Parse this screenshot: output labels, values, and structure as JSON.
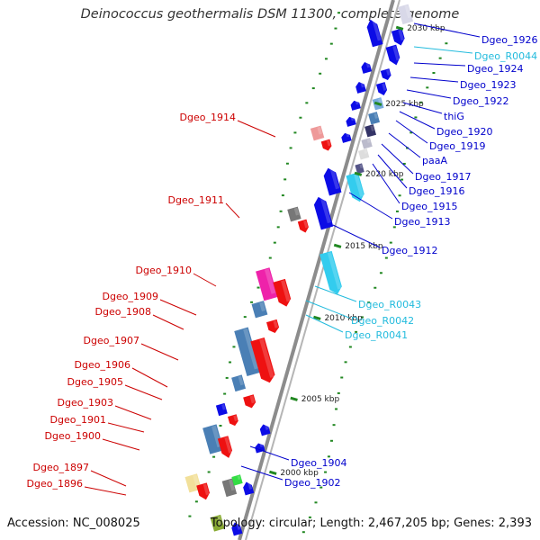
{
  "title": "Deinococcus geothermalis DSM 11300, complete genome",
  "footer": {
    "accession": "Accession: NC_008025",
    "topology": "Topology: circular; Length: 2,467,205 bp; Genes: 2,393"
  },
  "colors": {
    "backbone": "#9a9a9a",
    "forward_gene": "#0000ee",
    "reverse_gene": "#ee0000",
    "rna_label": "#22bbdd",
    "gc_dots": "#228822"
  },
  "ticks": [
    {
      "label": "2030 kbp"
    },
    {
      "label": "2025 kbp"
    },
    {
      "label": "2020 kbp"
    },
    {
      "label": "2015 kbp"
    },
    {
      "label": "2010 kbp"
    },
    {
      "label": "2005 kbp"
    },
    {
      "label": "2000 kbp"
    }
  ],
  "labels_left": [
    {
      "text": "Dgeo_1914",
      "color": "#cc0000"
    },
    {
      "text": "Dgeo_1911",
      "color": "#cc0000"
    },
    {
      "text": "Dgeo_1910",
      "color": "#cc0000"
    },
    {
      "text": "Dgeo_1909",
      "color": "#cc0000"
    },
    {
      "text": "Dgeo_1908",
      "color": "#cc0000"
    },
    {
      "text": "Dgeo_1907",
      "color": "#cc0000"
    },
    {
      "text": "Dgeo_1906",
      "color": "#cc0000"
    },
    {
      "text": "Dgeo_1905",
      "color": "#cc0000"
    },
    {
      "text": "Dgeo_1903",
      "color": "#cc0000"
    },
    {
      "text": "Dgeo_1901",
      "color": "#cc0000"
    },
    {
      "text": "Dgeo_1900",
      "color": "#cc0000"
    },
    {
      "text": "Dgeo_1897",
      "color": "#cc0000"
    },
    {
      "text": "Dgeo_1896",
      "color": "#cc0000"
    }
  ],
  "labels_right": [
    {
      "text": "Dgeo_1926",
      "color": "#0000cc"
    },
    {
      "text": "Dgeo_R0044",
      "color": "#22bbdd"
    },
    {
      "text": "Dgeo_1924",
      "color": "#0000cc"
    },
    {
      "text": "Dgeo_1923",
      "color": "#0000cc"
    },
    {
      "text": "Dgeo_1922",
      "color": "#0000cc"
    },
    {
      "text": "thiG",
      "color": "#0000cc"
    },
    {
      "text": "Dgeo_1920",
      "color": "#0000cc"
    },
    {
      "text": "Dgeo_1919",
      "color": "#0000cc"
    },
    {
      "text": "paaA",
      "color": "#0000cc"
    },
    {
      "text": "Dgeo_1917",
      "color": "#0000cc"
    },
    {
      "text": "Dgeo_1916",
      "color": "#0000cc"
    },
    {
      "text": "Dgeo_1915",
      "color": "#0000cc"
    },
    {
      "text": "Dgeo_1913",
      "color": "#0000cc"
    },
    {
      "text": "Dgeo_1912",
      "color": "#0000cc"
    },
    {
      "text": "Dgeo_R0043",
      "color": "#22bbdd"
    },
    {
      "text": "Dgeo_R0042",
      "color": "#22bbdd"
    },
    {
      "text": "Dgeo_R0041",
      "color": "#22bbdd"
    },
    {
      "text": "Dgeo_1904",
      "color": "#0000cc"
    },
    {
      "text": "Dgeo_1902",
      "color": "#0000cc"
    }
  ]
}
